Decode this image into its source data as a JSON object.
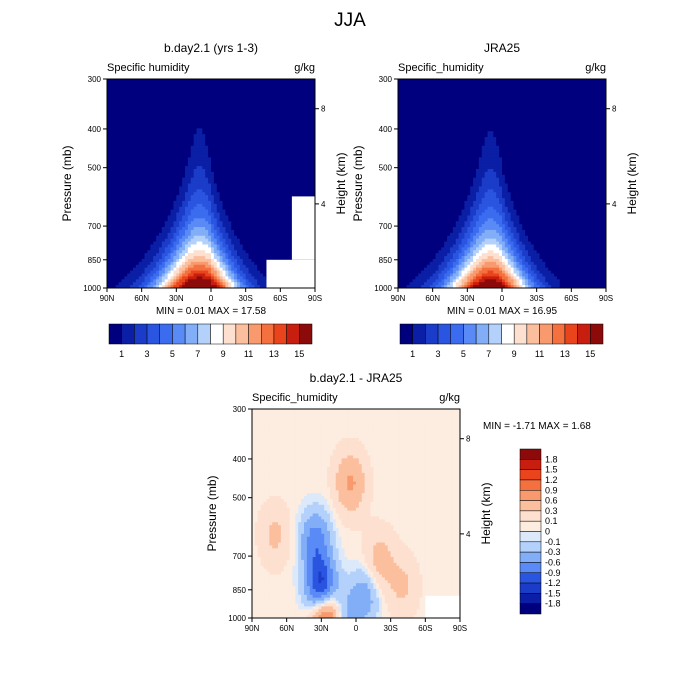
{
  "page_title": "JJA",
  "chart_data": [
    {
      "type": "heatmap",
      "panel": "model",
      "title": "b.day2.1 (yrs 1-3)",
      "left_label": "Specific humidity",
      "units": "g/kg",
      "ylabel": "Pressure (mb)",
      "ylabel_right": "Height (km)",
      "x_ticks": [
        "90N",
        "60N",
        "30N",
        "0",
        "30S",
        "60S",
        "90S"
      ],
      "y_ticks": [
        "300",
        "400",
        "500",
        "700",
        "850",
        "1000"
      ],
      "y_ticks_right": [
        "8",
        "4"
      ],
      "xlim": [
        90,
        -90
      ],
      "ylim": [
        1000,
        300
      ],
      "y_scale": "log",
      "stats": "MIN =   0.01   MAX =  17.58",
      "peak_latitude": 10,
      "peak_value": 17.58,
      "masked_region": "topography 60S-90S below 850 mb",
      "colorbar": {
        "levels": [
          1,
          2,
          3,
          4,
          5,
          6,
          7,
          8,
          9,
          10,
          11,
          12,
          13,
          14,
          15
        ],
        "labels": [
          "1",
          "3",
          "5",
          "7",
          "9",
          "11",
          "13",
          "15"
        ],
        "colors": [
          "#00007f",
          "#0a1fa5",
          "#1a3cc8",
          "#2a55e0",
          "#3b6cf0",
          "#5a8af5",
          "#82aef8",
          "#b3d1fb",
          "#ffffff",
          "#fde0cf",
          "#fbbf9e",
          "#f89a6e",
          "#f4703f",
          "#e9441c",
          "#c81e0f",
          "#8c0a0a"
        ]
      }
    },
    {
      "type": "heatmap",
      "panel": "obs",
      "title": "JRA25",
      "left_label": "Specific_humidity",
      "units": "g/kg",
      "ylabel": "Pressure (mb)",
      "ylabel_right": "Height (km)",
      "x_ticks": [
        "90N",
        "60N",
        "30N",
        "0",
        "30S",
        "60S",
        "90S"
      ],
      "y_ticks": [
        "300",
        "400",
        "500",
        "700",
        "850",
        "1000"
      ],
      "y_ticks_right": [
        "8",
        "4"
      ],
      "xlim": [
        90,
        -90
      ],
      "ylim": [
        1000,
        300
      ],
      "y_scale": "log",
      "stats": "MIN =   0.01   MAX =  16.95",
      "peak_latitude": 10,
      "peak_value": 16.95,
      "colorbar": {
        "levels": [
          1,
          2,
          3,
          4,
          5,
          6,
          7,
          8,
          9,
          10,
          11,
          12,
          13,
          14,
          15
        ],
        "labels": [
          "1",
          "3",
          "5",
          "7",
          "9",
          "11",
          "13",
          "15"
        ],
        "colors": [
          "#00007f",
          "#0a1fa5",
          "#1a3cc8",
          "#2a55e0",
          "#3b6cf0",
          "#5a8af5",
          "#82aef8",
          "#b3d1fb",
          "#ffffff",
          "#fde0cf",
          "#fbbf9e",
          "#f89a6e",
          "#f4703f",
          "#e9441c",
          "#c81e0f",
          "#8c0a0a"
        ]
      }
    },
    {
      "type": "heatmap",
      "panel": "difference",
      "title": "b.day2.1 - JRA25",
      "left_label": "Specific_humidity",
      "units": "g/kg",
      "ylabel": "Pressure (mb)",
      "ylabel_right": "Height (km)",
      "x_ticks": [
        "90N",
        "60N",
        "30N",
        "0",
        "30S",
        "60S",
        "90S"
      ],
      "y_ticks": [
        "300",
        "400",
        "500",
        "700",
        "850",
        "1000"
      ],
      "y_ticks_right": [
        "8",
        "4"
      ],
      "xlim": [
        90,
        -90
      ],
      "ylim": [
        1000,
        300
      ],
      "y_scale": "log",
      "stats": "MIN = -1.71  MAX =   1.68",
      "colorbar": {
        "levels": [
          1.8,
          1.5,
          1.2,
          0.9,
          0.6,
          0.3,
          0.1,
          0,
          -0.1,
          -0.3,
          -0.6,
          -0.9,
          -1.2,
          -1.5,
          -1.8
        ],
        "labels": [
          "1.8",
          "1.5",
          "1.2",
          "0.9",
          "0.6",
          "0.3",
          "0.1",
          "0",
          "-0.1",
          "-0.3",
          "-0.6",
          "-0.9",
          "-1.2",
          "-1.5",
          "-1.8"
        ],
        "colors": [
          "#8c0a0a",
          "#c81e0f",
          "#e9441c",
          "#f4703f",
          "#f89a6e",
          "#fbbf9e",
          "#fde0cf",
          "#fdece0",
          "#dbe9fb",
          "#b3d1fb",
          "#82aef8",
          "#5a8af5",
          "#2a55e0",
          "#1a3cc8",
          "#0a1fa5",
          "#00007f"
        ]
      },
      "features": [
        {
          "lat": 30,
          "p": 850,
          "value": -1.7,
          "sign": "negative"
        },
        {
          "lat": 35,
          "p": 640,
          "value": -0.8,
          "sign": "negative"
        },
        {
          "lat": 27,
          "p": 985,
          "value": 1.6,
          "sign": "positive"
        },
        {
          "lat": 5,
          "p": 460,
          "value": 0.6,
          "sign": "positive"
        },
        {
          "lat": -20,
          "p": 720,
          "value": 0.4,
          "sign": "positive"
        },
        {
          "lat": -40,
          "p": 830,
          "value": 0.3,
          "sign": "positive"
        },
        {
          "lat": 70,
          "p": 620,
          "value": 0.3,
          "sign": "positive"
        },
        {
          "lat": -8,
          "p": 880,
          "value": -0.5,
          "sign": "negative"
        },
        {
          "lat": 10,
          "p": 980,
          "value": -0.4,
          "sign": "negative"
        }
      ]
    }
  ]
}
